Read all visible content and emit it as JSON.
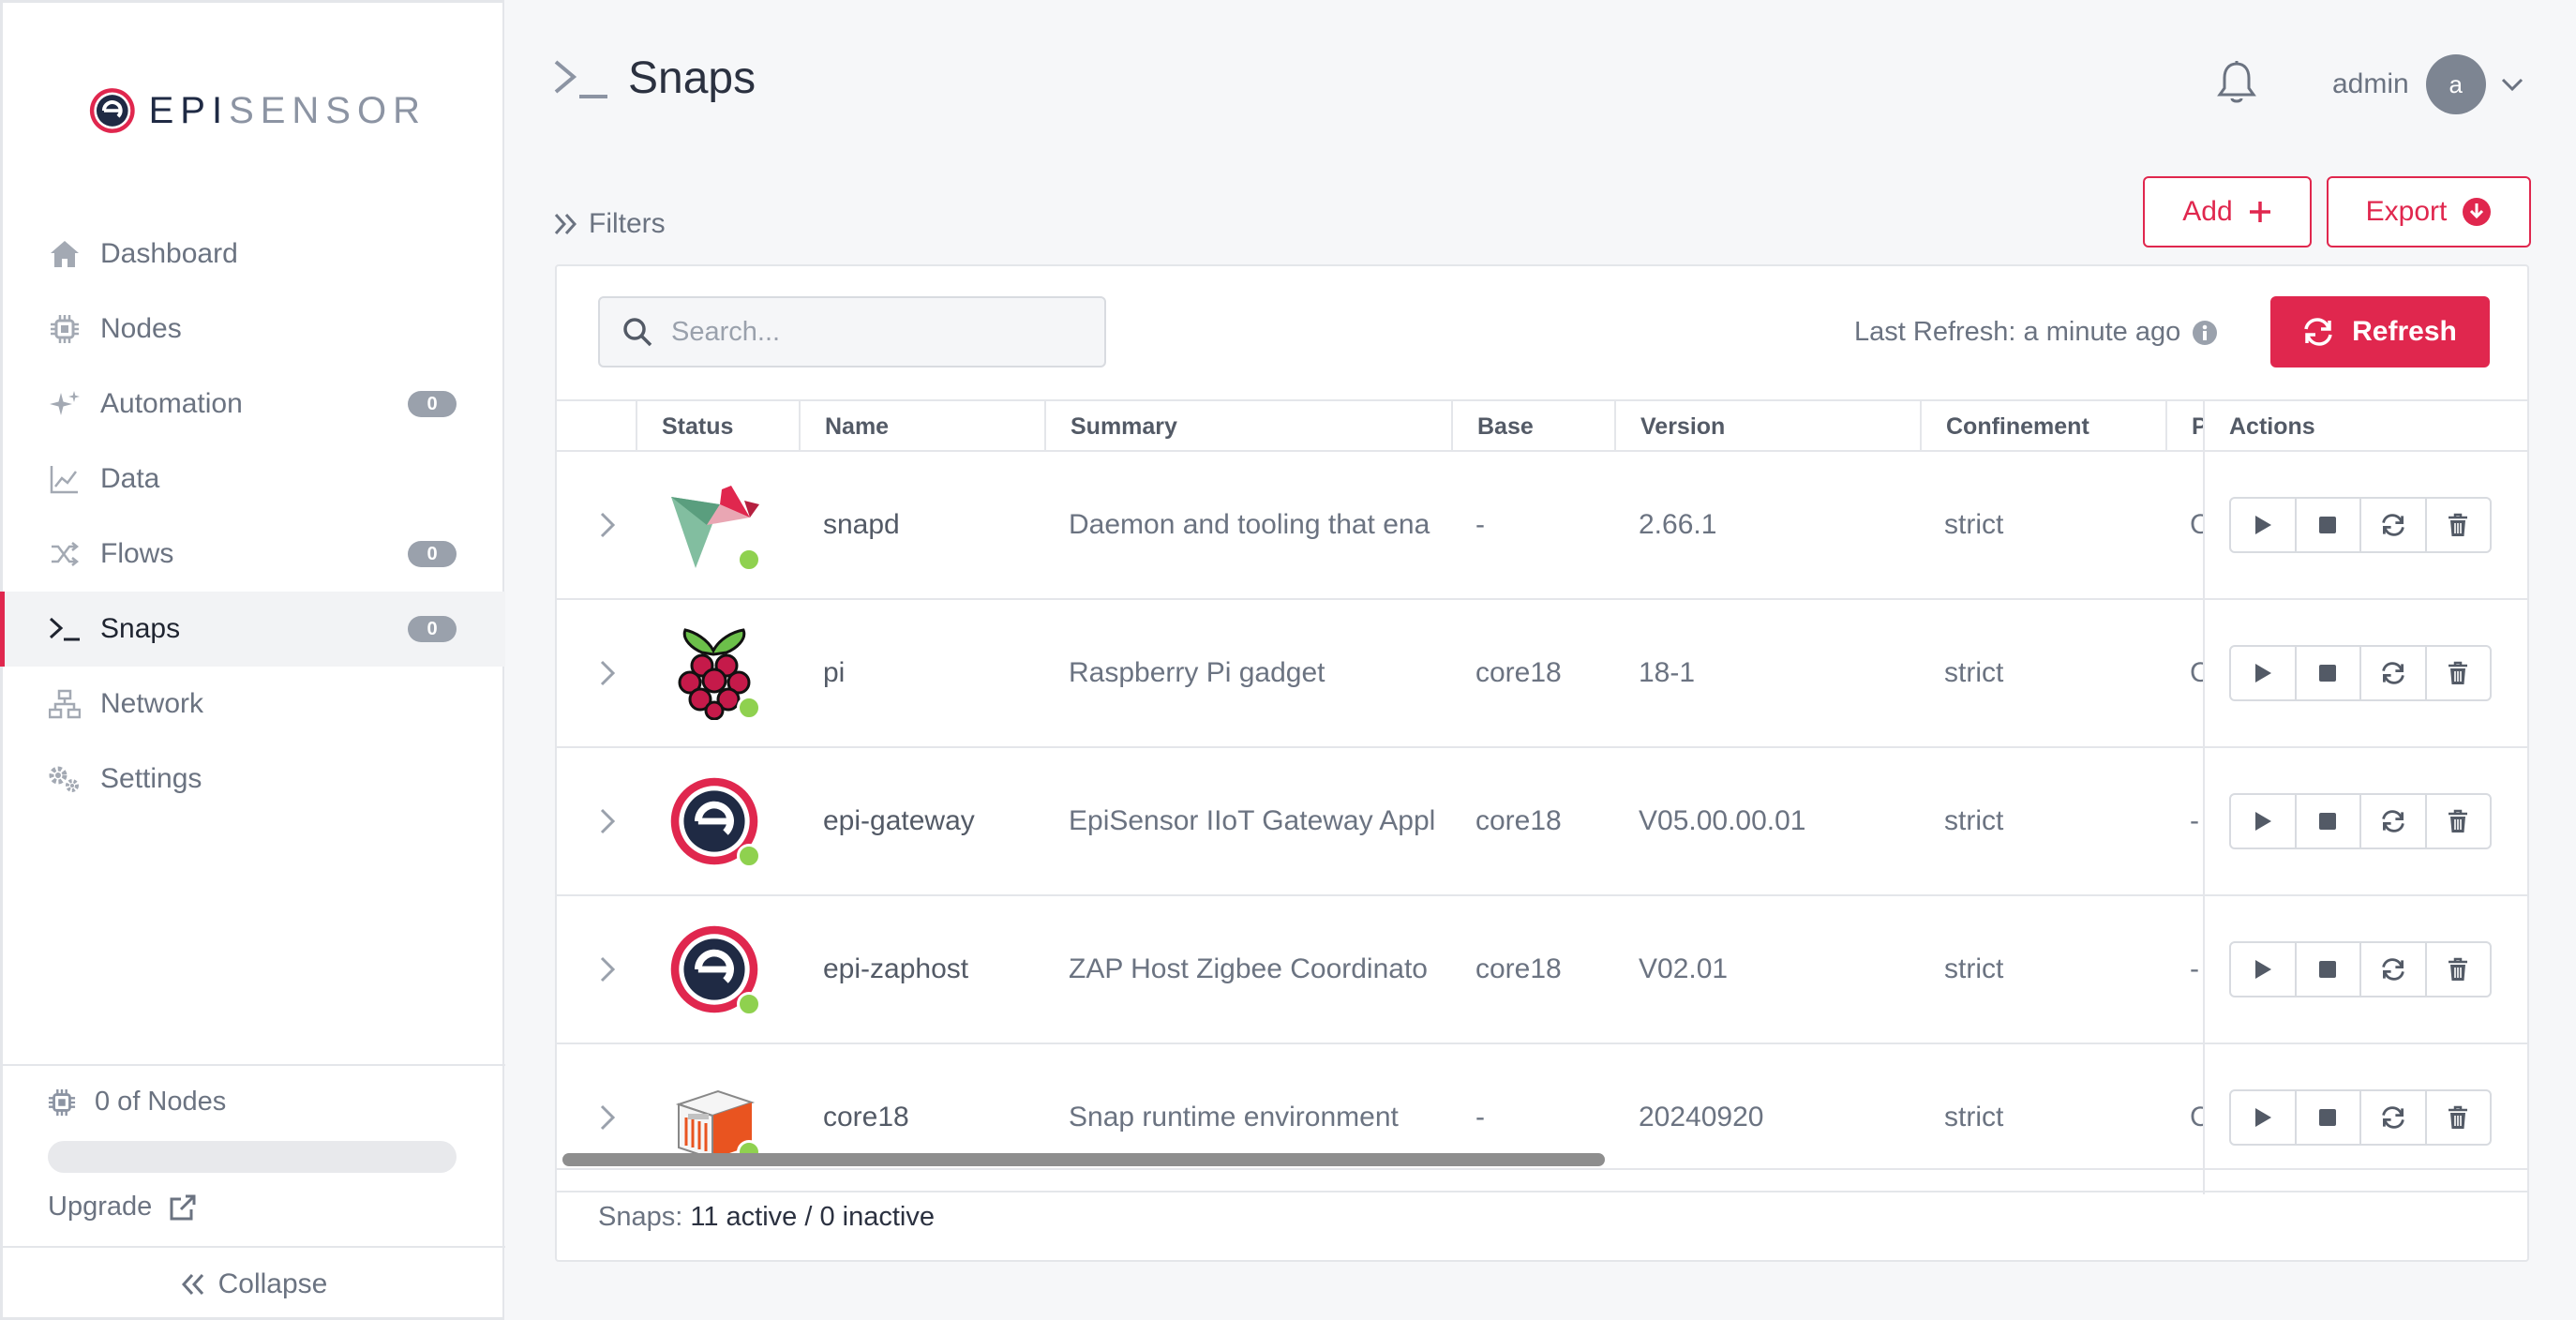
{
  "brand": {
    "name_bold": "EPI",
    "name_light": "SENSOR",
    "accent": "#e0274e",
    "navy": "#1f2a44"
  },
  "sidebar": {
    "items": [
      {
        "label": "Dashboard",
        "icon": "home-icon"
      },
      {
        "label": "Nodes",
        "icon": "chip-icon"
      },
      {
        "label": "Automation",
        "icon": "sparkle-icon",
        "badge": "0"
      },
      {
        "label": "Data",
        "icon": "line-chart-icon"
      },
      {
        "label": "Flows",
        "icon": "shuffle-icon",
        "badge": "0"
      },
      {
        "label": "Snaps",
        "icon": "terminal-icon",
        "badge": "0",
        "active": true
      },
      {
        "label": "Network",
        "icon": "network-icon"
      },
      {
        "label": "Settings",
        "icon": "gears-icon"
      }
    ],
    "nodes_count": "0 of Nodes",
    "nodes_progress": 0,
    "upgrade": "Upgrade",
    "collapse": "Collapse"
  },
  "header": {
    "title": "Snaps",
    "user": "admin",
    "avatar_initial": "a"
  },
  "toolbar": {
    "filters": "Filters",
    "add": "Add",
    "export": "Export"
  },
  "card": {
    "search_placeholder": "Search...",
    "last_refresh": "Last Refresh: a minute ago",
    "refresh": "Refresh",
    "columns": [
      "Status",
      "Name",
      "Summary",
      "Base",
      "Version",
      "Confinement",
      "P",
      "Actions"
    ],
    "rows": [
      {
        "name": "snapd",
        "summary": "Daemon and tooling that ena",
        "base": "-",
        "version": "2.66.1",
        "confinement": "strict",
        "p": "C",
        "icon": "snapd-icon"
      },
      {
        "name": "pi",
        "summary": "Raspberry Pi gadget",
        "base": "core18",
        "version": "18-1",
        "confinement": "strict",
        "p": "C",
        "icon": "raspberry-pi-icon"
      },
      {
        "name": "epi-gateway",
        "summary": "EpiSensor IIoT Gateway Appl",
        "base": "core18",
        "version": "V05.00.00.01",
        "confinement": "strict",
        "p": "-",
        "icon": "episensor-icon"
      },
      {
        "name": "epi-zaphost",
        "summary": "ZAP Host Zigbee Coordinato",
        "base": "core18",
        "version": "V02.01",
        "confinement": "strict",
        "p": "-",
        "icon": "episensor-icon"
      },
      {
        "name": "core18",
        "summary": "Snap runtime environment",
        "base": "-",
        "version": "20240920",
        "confinement": "strict",
        "p": "C",
        "icon": "core18-icon"
      }
    ],
    "footer_label": "Snaps:",
    "footer_value": "11 active / 0 inactive"
  }
}
